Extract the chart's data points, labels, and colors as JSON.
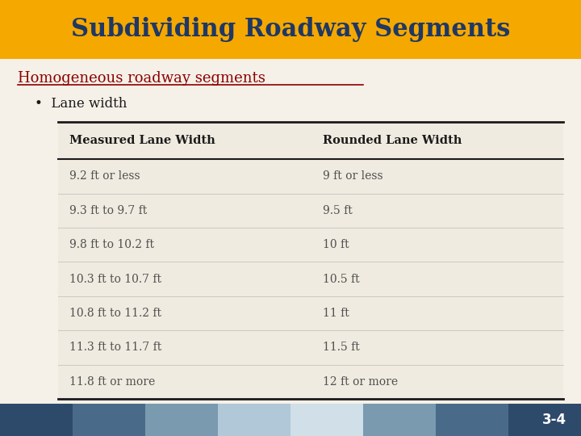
{
  "title": "Subdividing Roadway Segments",
  "title_color": "#1F3864",
  "title_bg_color": "#F5A800",
  "subtitle": "Homogeneous roadway segments",
  "subtitle_color": "#8B0000",
  "bullet": "Lane width",
  "bullet_color": "#1a1a1a",
  "table_headers": [
    "Measured Lane Width",
    "Rounded Lane Width"
  ],
  "table_rows": [
    [
      "9.2 ft or less",
      "9 ft or less"
    ],
    [
      "9.3 ft to 9.7 ft",
      "9.5 ft"
    ],
    [
      "9.8 ft to 10.2 ft",
      "10 ft"
    ],
    [
      "10.3 ft to 10.7 ft",
      "10.5 ft"
    ],
    [
      "10.8 ft to 11.2 ft",
      "11 ft"
    ],
    [
      "11.3 ft to 11.7 ft",
      "11.5 ft"
    ],
    [
      "11.8 ft or more",
      "12 ft or more"
    ]
  ],
  "table_bg_color": "#F0EBE0",
  "table_header_text_color": "#1a1a1a",
  "table_row_text_color": "#505050",
  "bg_color": "#F5F0E8",
  "footer_colors": [
    "#2E4A6B",
    "#4A6A8A",
    "#7A9AB0",
    "#B0C8D8",
    "#D0DFE8",
    "#7A9AB0",
    "#4A6A8A",
    "#2E4A6B"
  ],
  "footer_text_color": "#FFFFFF",
  "page_number": "3-4"
}
